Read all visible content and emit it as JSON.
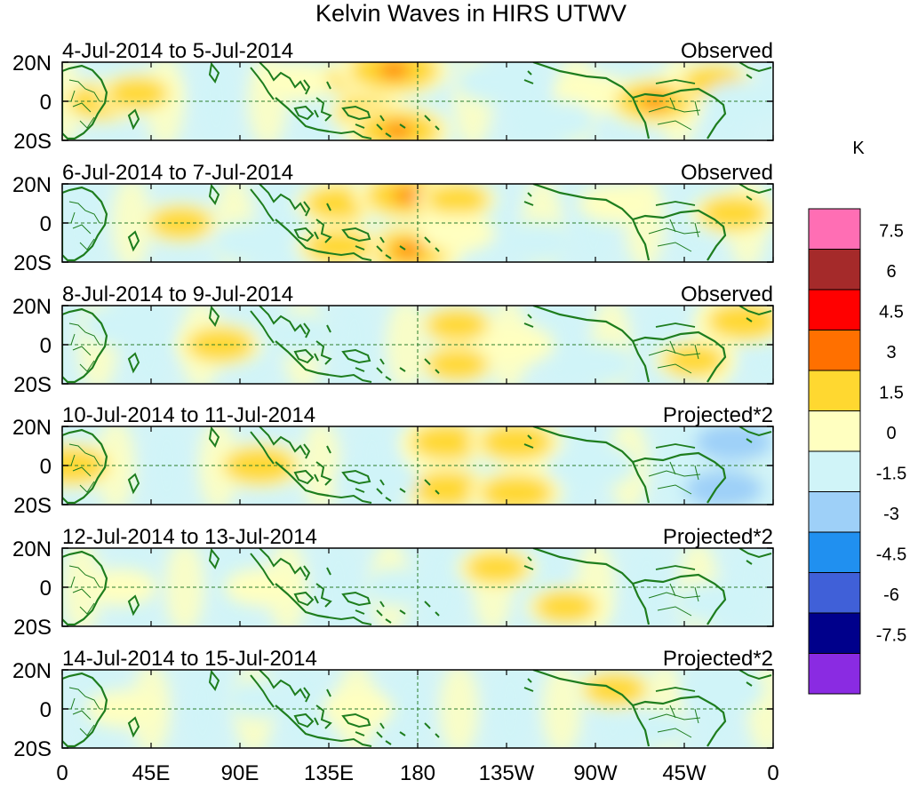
{
  "chart_data": {
    "type": "heatmap",
    "title": "Kelvin Waves in HIRS UTWV",
    "unit": "K",
    "x_tick_labels": [
      "0",
      "45E",
      "90E",
      "135E",
      "180",
      "135W",
      "90W",
      "45W",
      "0"
    ],
    "lon_range_deg": [
      0,
      360
    ],
    "lat_range_deg": [
      -20,
      20
    ],
    "y_tick_labels": [
      "20N",
      "0",
      "20S"
    ],
    "colorbar": {
      "labels": [
        "7.5",
        "6",
        "4.5",
        "3",
        "1.5",
        "0",
        "-1.5",
        "-3",
        "-4.5",
        "-6",
        "-7.5"
      ],
      "colors": [
        "#ff6eb4",
        "#a52a2a",
        "#ff0000",
        "#ff7000",
        "#ffd830",
        "#ffffc0",
        "#d0f4f8",
        "#9ed0f8",
        "#2090f0",
        "#4060d8",
        "#00008b",
        "#8a2be2"
      ]
    },
    "panels": [
      {
        "date_label": "4-Jul-2014 to 5-Jul-2014",
        "type_label": "Observed",
        "features": [
          {
            "lon": 20,
            "lat": 0,
            "value": 2.0
          },
          {
            "lon": 38,
            "lat": 4,
            "value": 1.5
          },
          {
            "lon": 120,
            "lat": 10,
            "value": 1.0
          },
          {
            "lon": 150,
            "lat": 12,
            "value": 1.5
          },
          {
            "lon": 168,
            "lat": 16,
            "value": 4.0
          },
          {
            "lon": 155,
            "lat": -6,
            "value": 1.5
          },
          {
            "lon": 170,
            "lat": -15,
            "value": 3.5
          },
          {
            "lon": 270,
            "lat": 4,
            "value": 1.2
          },
          {
            "lon": 300,
            "lat": 0,
            "value": 3.0
          },
          {
            "lon": 330,
            "lat": 10,
            "value": 1.5
          },
          {
            "lon": 220,
            "lat": 10,
            "value": -1.5
          },
          {
            "lon": 250,
            "lat": -10,
            "value": -1.5
          },
          {
            "lon": 345,
            "lat": 0,
            "value": -1.5
          }
        ]
      },
      {
        "date_label": "6-Jul-2014 to 7-Jul-2014",
        "type_label": "Observed",
        "features": [
          {
            "lon": 60,
            "lat": 0,
            "value": 1.5
          },
          {
            "lon": 140,
            "lat": 10,
            "value": 2.0
          },
          {
            "lon": 175,
            "lat": 14,
            "value": 3.5
          },
          {
            "lon": 200,
            "lat": 12,
            "value": 1.5
          },
          {
            "lon": 175,
            "lat": -14,
            "value": 3.5
          },
          {
            "lon": 140,
            "lat": -12,
            "value": 2.0
          },
          {
            "lon": 200,
            "lat": -5,
            "value": 1.2
          },
          {
            "lon": 340,
            "lat": 5,
            "value": 2.0
          },
          {
            "lon": 280,
            "lat": 10,
            "value": 1.0
          },
          {
            "lon": 95,
            "lat": -10,
            "value": -1.5
          },
          {
            "lon": 240,
            "lat": -10,
            "value": -1.5
          }
        ]
      },
      {
        "date_label": "8-Jul-2014 to 9-Jul-2014",
        "type_label": "Observed",
        "features": [
          {
            "lon": 80,
            "lat": 0,
            "value": 2.0
          },
          {
            "lon": 200,
            "lat": 10,
            "value": 1.5
          },
          {
            "lon": 200,
            "lat": -10,
            "value": 1.5
          },
          {
            "lon": 230,
            "lat": 0,
            "value": 1.2
          },
          {
            "lon": 345,
            "lat": 12,
            "value": 2.5
          },
          {
            "lon": 320,
            "lat": -8,
            "value": 1.5
          },
          {
            "lon": 120,
            "lat": 5,
            "value": -1.5
          },
          {
            "lon": 270,
            "lat": -10,
            "value": -1.5
          },
          {
            "lon": 30,
            "lat": 10,
            "value": -1.5
          }
        ]
      },
      {
        "date_label": "10-Jul-2014 to 11-Jul-2014",
        "type_label": "Projected*2",
        "features": [
          {
            "lon": 5,
            "lat": 0,
            "value": 2.5
          },
          {
            "lon": 100,
            "lat": 0,
            "value": 2.5
          },
          {
            "lon": 195,
            "lat": 12,
            "value": 2.5
          },
          {
            "lon": 230,
            "lat": 12,
            "value": 2.5
          },
          {
            "lon": 195,
            "lat": -12,
            "value": 2.5
          },
          {
            "lon": 230,
            "lat": -14,
            "value": 2.5
          },
          {
            "lon": 335,
            "lat": -12,
            "value": -3.0
          },
          {
            "lon": 340,
            "lat": 12,
            "value": -3.0
          },
          {
            "lon": 160,
            "lat": -8,
            "value": -1.5
          },
          {
            "lon": 270,
            "lat": 0,
            "value": -1.5
          }
        ]
      },
      {
        "date_label": "12-Jul-2014 to 13-Jul-2014",
        "type_label": "Projected*2",
        "features": [
          {
            "lon": 220,
            "lat": 10,
            "value": 1.5
          },
          {
            "lon": 255,
            "lat": -10,
            "value": 1.5
          },
          {
            "lon": 30,
            "lat": 0,
            "value": 0.8
          },
          {
            "lon": 100,
            "lat": 0,
            "value": 0.8
          },
          {
            "lon": 330,
            "lat": -8,
            "value": -1.5
          },
          {
            "lon": 170,
            "lat": 0,
            "value": -0.8
          }
        ]
      },
      {
        "date_label": "14-Jul-2014 to 15-Jul-2014",
        "type_label": "Projected*2",
        "features": [
          {
            "lon": 280,
            "lat": 10,
            "value": 1.5
          },
          {
            "lon": 30,
            "lat": 0,
            "value": 0.8
          },
          {
            "lon": 150,
            "lat": 0,
            "value": 0.8
          },
          {
            "lon": 335,
            "lat": 10,
            "value": -1.5
          },
          {
            "lon": 100,
            "lat": 5,
            "value": -0.8
          },
          {
            "lon": 300,
            "lat": -10,
            "value": -0.8
          }
        ]
      }
    ]
  }
}
